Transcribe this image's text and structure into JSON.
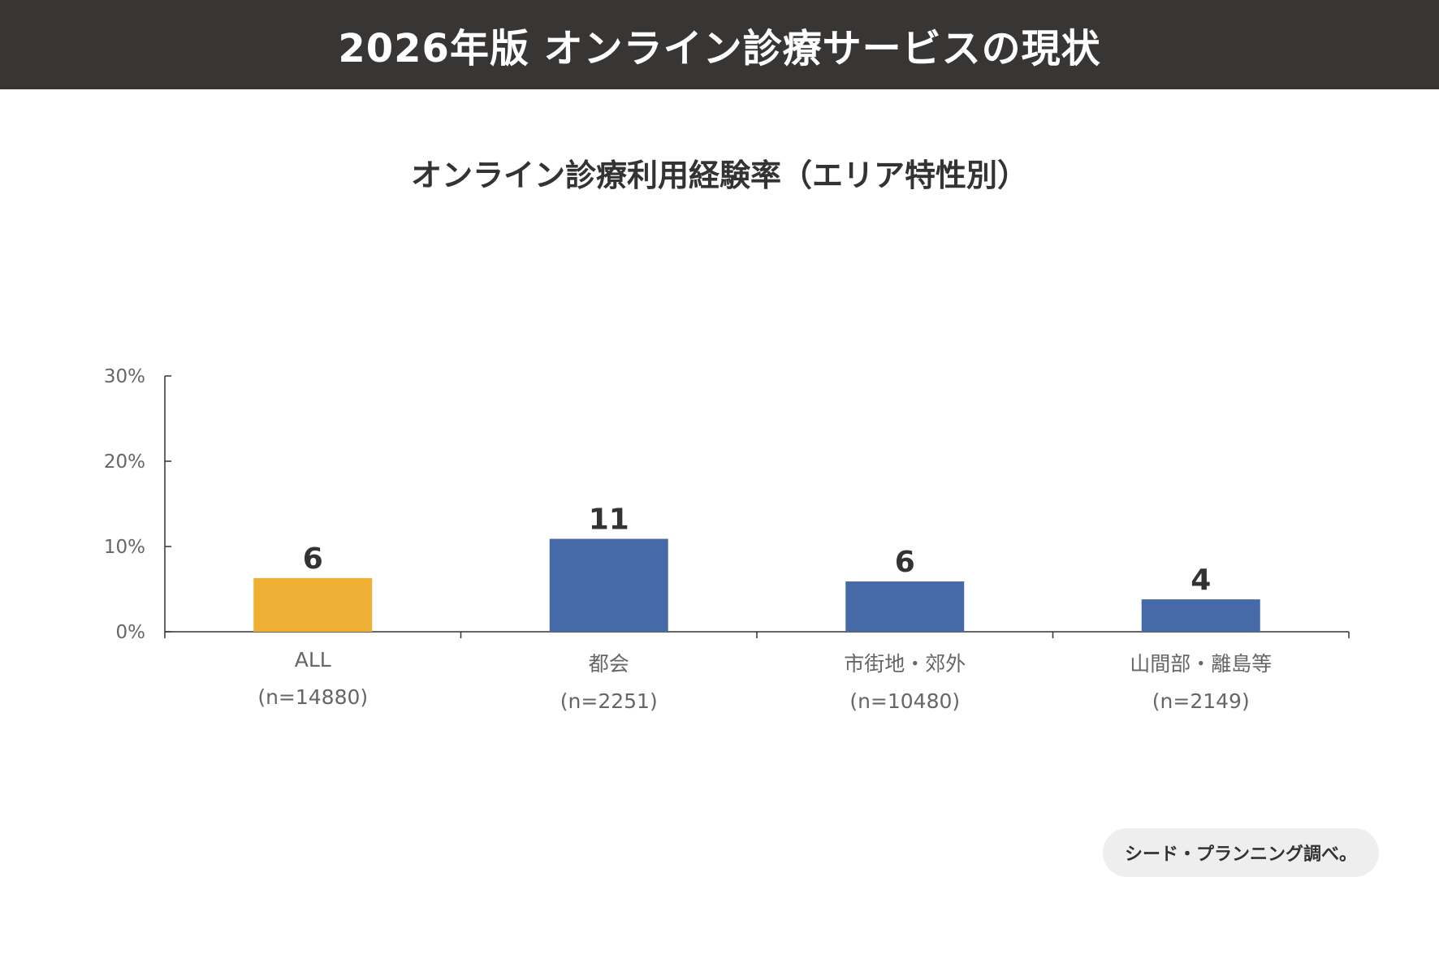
{
  "header": {
    "title": "2026年版 オンライン診療サービスの現状"
  },
  "source": {
    "text": "シード・プランニング調べ。"
  },
  "colors": {
    "highlight": "#EDB034",
    "series": "#4669A8",
    "axis": "#333333"
  },
  "chart_data": {
    "type": "bar",
    "title": "オンライン診療利用経験率（エリア特性別）",
    "xlabel": "",
    "ylabel": "",
    "ylim": [
      0,
      30
    ],
    "yticks": [
      "0%",
      "10%",
      "20%",
      "30%"
    ],
    "ytick_values": [
      0,
      10,
      20,
      30
    ],
    "grid": false,
    "categories": [
      {
        "name": "ALL",
        "n": "(n=14880)"
      },
      {
        "name": "都会",
        "n": "(n=2251)"
      },
      {
        "name": "市街地・郊外",
        "n": "(n=10480)"
      },
      {
        "name": "山間部・離島等",
        "n": "(n=2149)"
      }
    ],
    "values": [
      6.3,
      10.9,
      5.9,
      3.8
    ],
    "data_labels": [
      "6",
      "11",
      "6",
      "4"
    ],
    "highlight_index": 0
  }
}
